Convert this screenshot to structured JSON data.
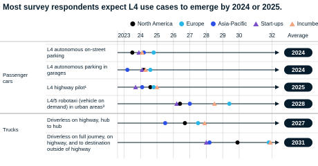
{
  "chart_data": {
    "type": "dot",
    "title": "Most survey respondents expect L4 use cases to emerge by 2024 or 2025.",
    "average_header": "Average",
    "groups": [
      {
        "name": "Passenger cars",
        "rows": [
          0,
          1,
          2,
          3
        ]
      },
      {
        "name": "Trucks",
        "rows": [
          4,
          5
        ]
      }
    ],
    "categories": [
      "L4 autonomous on-street parking",
      "L4 autonomous parking in garages",
      "L4 highway pilot¹",
      "L4/5 robotaxi (vehicle on demand) in urban areas³",
      "Driverless on highway, hub to hub",
      "Driverless on full journey, on highway, and to destination outside of highway"
    ],
    "averages": [
      2024,
      2024,
      2025,
      2028,
      2027,
      2031
    ],
    "xlim": [
      2022.6,
      2032.4
    ],
    "xticks": [
      2023,
      {
        "value": 2024,
        "label": "24"
      },
      {
        "value": 2025,
        "label": "25"
      },
      {
        "value": 2026,
        "label": "26"
      },
      {
        "value": 2027,
        "label": "27"
      },
      {
        "value": 2028,
        "label": "28"
      },
      {
        "value": 2029,
        "label": "29"
      },
      {
        "value": 2030,
        "label": "30"
      },
      {
        "value": 2032,
        "label": "32"
      }
    ],
    "grid": true,
    "series": [
      {
        "name": "North America",
        "color": "#000000",
        "marker": "circle",
        "values": [
          2023.5,
          2024.2,
          2024.6,
          2026.4,
          2026.7,
          2029.9
        ]
      },
      {
        "name": "Europe",
        "color": "#29b5e8",
        "marker": "circle",
        "values": [
          2024.8,
          2024.6,
          2024.8,
          2029.4,
          2027.5,
          2031.8
        ]
      },
      {
        "name": "Asia-Pacific",
        "color": "#2b50e6",
        "marker": "circle",
        "values": [
          2024.2,
          2023.2,
          2024.1,
          2027.0,
          2025.5,
          2028.2
        ]
      },
      {
        "name": "Start-ups",
        "color": "#7b4fc9",
        "marker": "triangle",
        "values": [
          2023.9,
          2024.1,
          2023.7,
          2026.2,
          null,
          2028.0
        ]
      },
      {
        "name": "Incumbents",
        "color": "#f4a582",
        "marker": "triangle",
        "values": [
          2024.1,
          2024.3,
          2025.0,
          2028.5,
          2027.9,
          2031.9
        ]
      }
    ]
  }
}
